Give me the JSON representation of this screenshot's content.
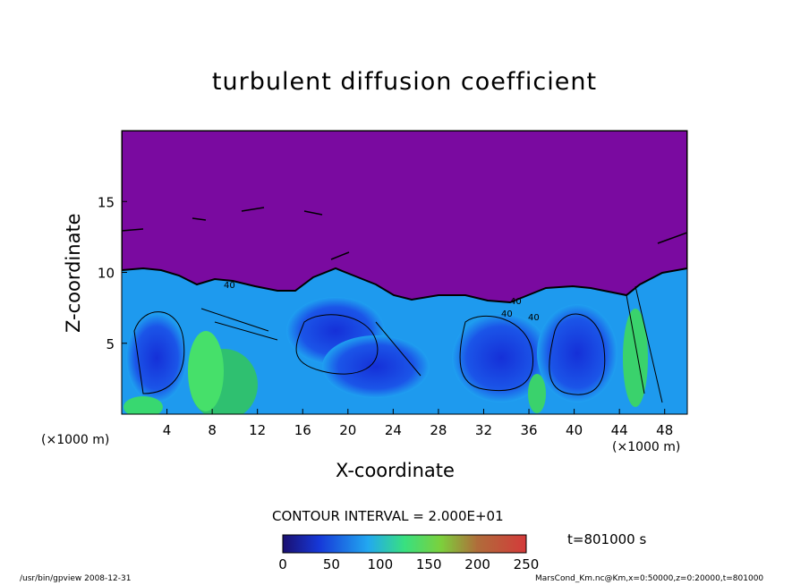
{
  "chart_data": {
    "type": "heatmap",
    "title": "turbulent diffusion coefficient",
    "xlabel": "X-coordinate",
    "ylabel": "Z-coordinate",
    "x_unit": "(×1000 m)",
    "xlim": [
      0,
      50
    ],
    "ylim": [
      0,
      20
    ],
    "x_ticks": [
      "4",
      "8",
      "12",
      "16",
      "20",
      "24",
      "28",
      "32",
      "36",
      "40",
      "44",
      "48"
    ],
    "y_ticks": [
      "5",
      "10",
      "15"
    ],
    "colorbar": {
      "min": 0,
      "max": 250,
      "ticks": [
        "0",
        "50",
        "100",
        "150",
        "200",
        "250"
      ]
    },
    "contour_interval": "CONTOUR INTERVAL = 2.000E+01",
    "time": "t=801000 s",
    "contour_labels": [
      "40",
      "40",
      "40",
      "40"
    ],
    "colors": {
      "purple_region": "#7a0aa0",
      "low_blue": "#1b3fe0",
      "mid_cyan": "#1fa0f0",
      "green": "#3ce070"
    }
  },
  "footer": {
    "left": "/usr/bin/gpview   2008-12-31",
    "right": "MarsCond_Km.nc@Km,x=0:50000,z=0:20000,t=801000"
  }
}
